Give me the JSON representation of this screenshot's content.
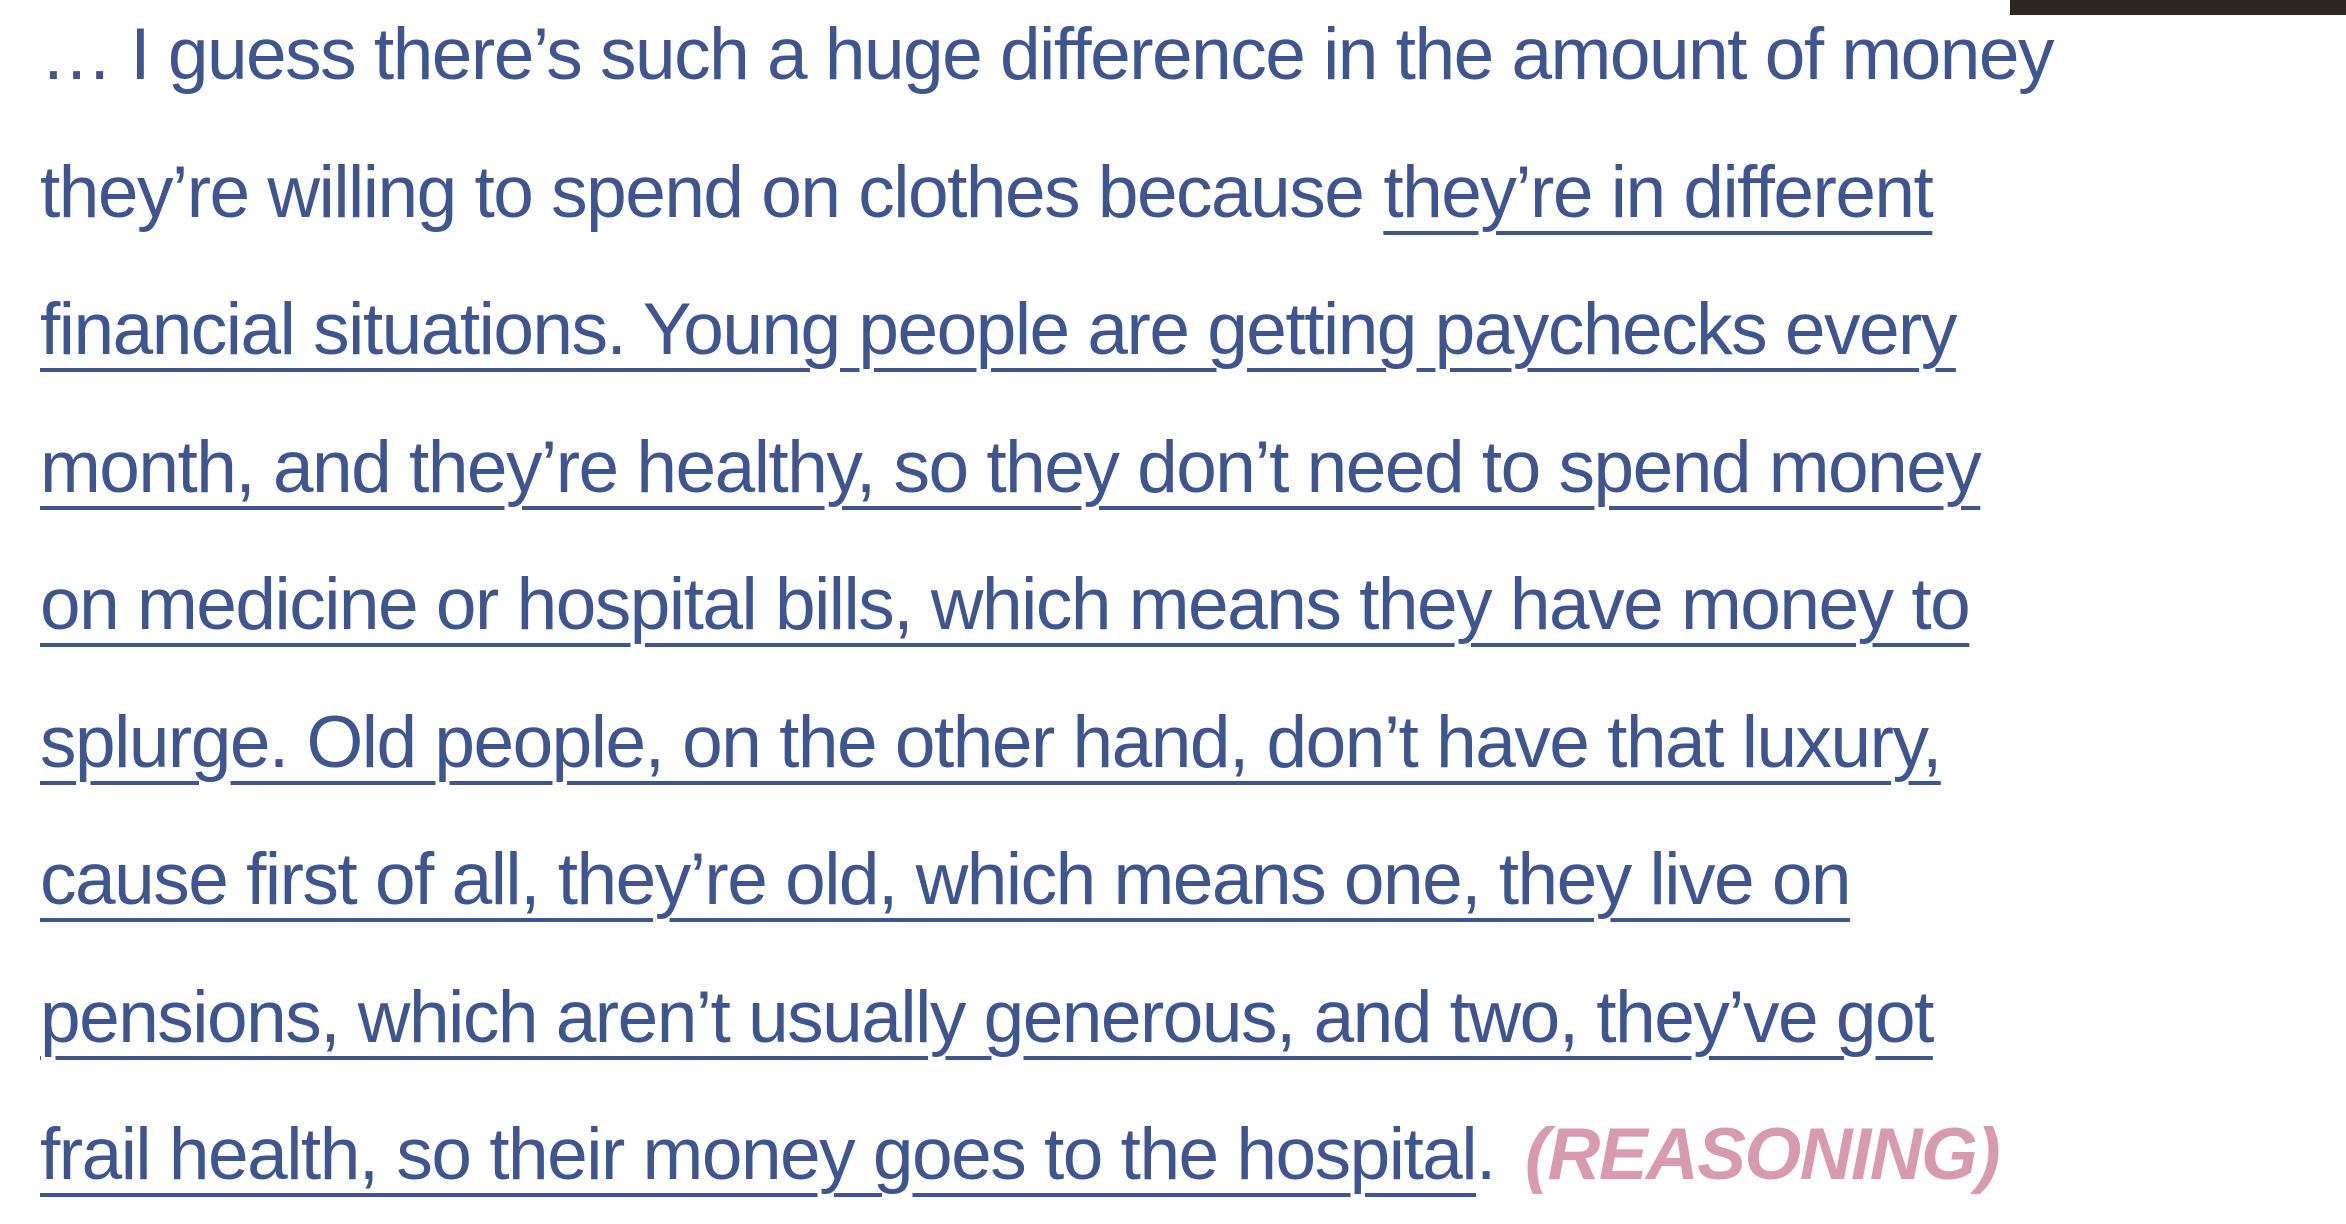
{
  "lines": [
    [
      {
        "text": "… I guess there’s such a huge difference in the amount of money",
        "underline": false
      }
    ],
    [
      {
        "text": "they’re willing to spend on clothes because",
        "underline": false
      },
      {
        "text": "they’re in different",
        "underline": true
      }
    ],
    [
      {
        "text": "financial situations. Young people are getting paychecks every",
        "underline": true
      }
    ],
    [
      {
        "text": "month, and they’re healthy, so they don’t need to spend money",
        "underline": true
      }
    ],
    [
      {
        "text": "on medicine or hospital bills, which means they have money to",
        "underline": true
      }
    ],
    [
      {
        "text": "splurge. Old people, on the other hand, don’t have that luxury,",
        "underline": true
      }
    ],
    [
      {
        "text": "cause first of all, they’re old, which means one, they live on",
        "underline": true
      }
    ],
    [
      {
        "text": "pensions, which aren’t usually generous, and two, they’ve got",
        "underline": true
      }
    ],
    [
      {
        "text": "frail health, so their money goes to the hospital",
        "underline": true
      },
      {
        "text": ".",
        "underline": false
      }
    ]
  ],
  "label": "(REASONING)"
}
